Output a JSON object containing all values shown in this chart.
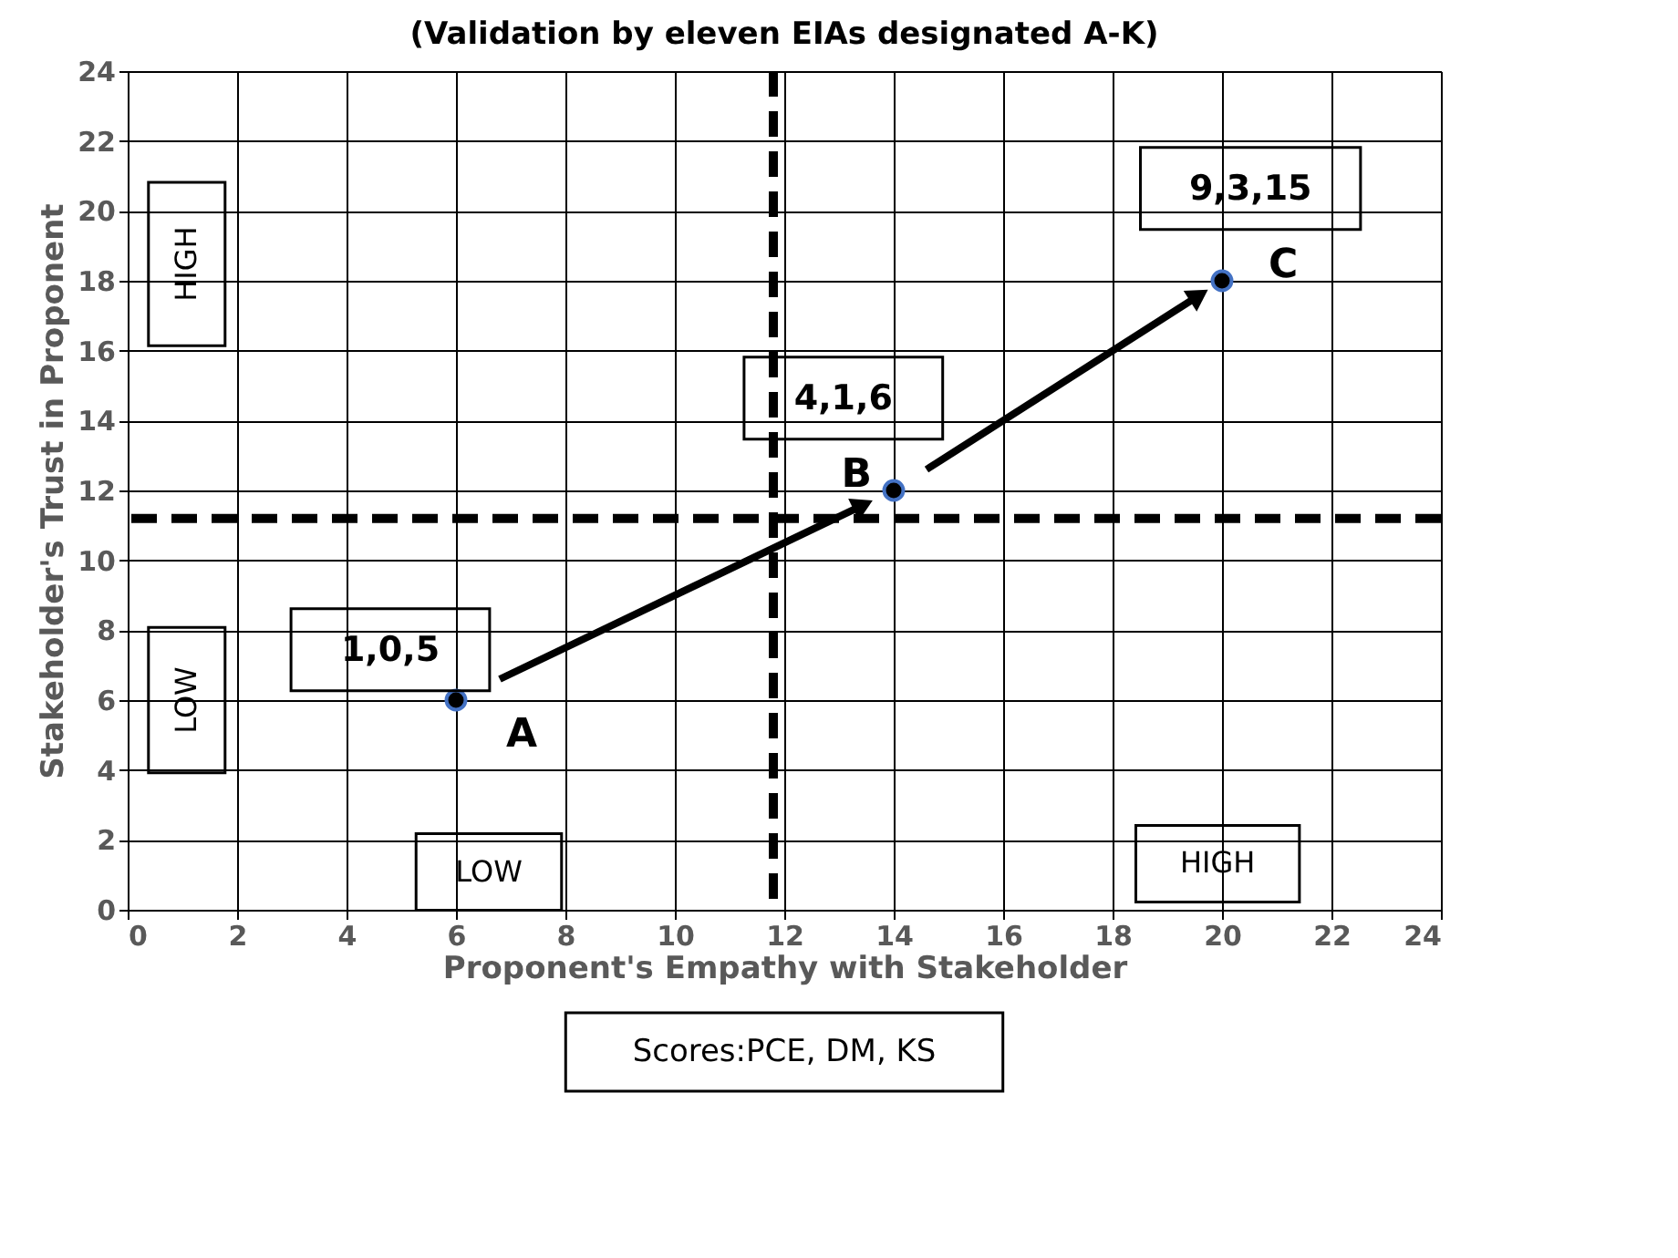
{
  "chart_data": {
    "type": "scatter",
    "title": "(Validation by eleven EIAs designated A-K)",
    "xlabel": "Proponent's Empathy with Stakeholder",
    "ylabel": "Stakeholder's Trust in Proponent",
    "x": [
      6,
      14,
      20
    ],
    "series": [
      {
        "color": "#000000",
        "values": [
          6,
          12,
          18
        ]
      }
    ],
    "xlim": [
      0,
      24
    ],
    "ylim": [
      0,
      24
    ],
    "xticks": [
      0,
      2,
      4,
      6,
      8,
      10,
      12,
      14,
      16,
      18,
      20,
      22,
      24
    ],
    "yticks": [
      0,
      2,
      4,
      6,
      8,
      10,
      12,
      14,
      16,
      18,
      20,
      22,
      24
    ],
    "grid": true,
    "marker": "circle",
    "ref_lines": [
      {
        "axis": "x",
        "value": 11.8,
        "color": "#000000",
        "line_style": "dashed"
      },
      {
        "axis": "y",
        "value": 11.2,
        "color": "#000000",
        "line_style": "dashed"
      }
    ],
    "annotations": [
      "1,0,5",
      "4,1,6",
      "9,3,15",
      "A",
      "B",
      "C",
      "HIGH",
      "LOW",
      "LOW",
      "HIGH",
      "Scores:PCE, DM, KS"
    ]
  }
}
